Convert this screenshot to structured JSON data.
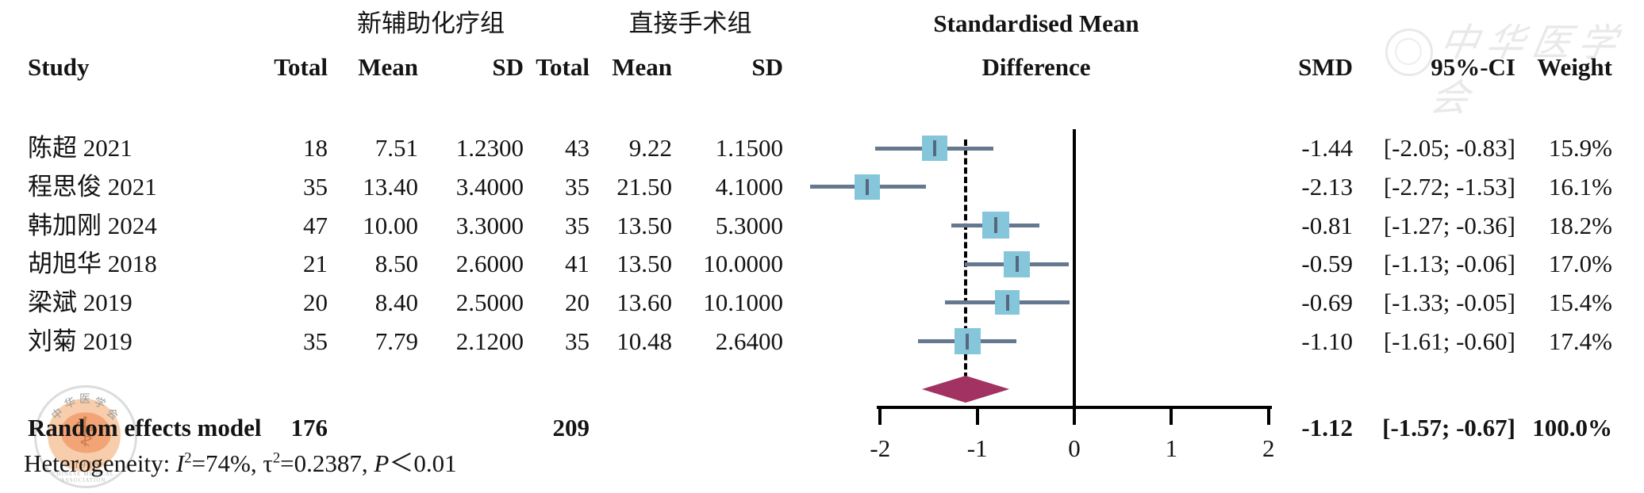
{
  "header": {
    "group1": "新辅助化疗组",
    "group2": "直接手术组",
    "effect_line1": "Standardised Mean",
    "effect_line2": "Difference",
    "col_study": "Study",
    "col_total": "Total",
    "col_mean": "Mean",
    "col_sd": "SD",
    "col_smd": "SMD",
    "col_ci": "95%-CI",
    "col_weight": "Weight"
  },
  "studies": [
    {
      "name": "陈超 2021",
      "total1": "18",
      "mean1": "7.51",
      "sd1": "1.2300",
      "total2": "43",
      "mean2": "9.22",
      "sd2": "1.1500",
      "smd": "-1.44",
      "ci": "[-2.05; -0.83]",
      "weight": "15.9%"
    },
    {
      "name": "程思俊 2021",
      "total1": "35",
      "mean1": "13.40",
      "sd1": "3.4000",
      "total2": "35",
      "mean2": "21.50",
      "sd2": "4.1000",
      "smd": "-2.13",
      "ci": "[-2.72; -1.53]",
      "weight": "16.1%"
    },
    {
      "name": "韩加刚 2024",
      "total1": "47",
      "mean1": "10.00",
      "sd1": "3.3000",
      "total2": "35",
      "mean2": "13.50",
      "sd2": "5.3000",
      "smd": "-0.81",
      "ci": "[-1.27; -0.36]",
      "weight": "18.2%"
    },
    {
      "name": "胡旭华 2018",
      "total1": "21",
      "mean1": "8.50",
      "sd1": "2.6000",
      "total2": "41",
      "mean2": "13.50",
      "sd2": "10.0000",
      "smd": "-0.59",
      "ci": "[-1.13; -0.06]",
      "weight": "17.0%"
    },
    {
      "name": "梁斌 2019",
      "total1": "20",
      "mean1": "8.40",
      "sd1": "2.5000",
      "total2": "20",
      "mean2": "13.60",
      "sd2": "10.1000",
      "smd": "-0.69",
      "ci": "[-1.33; -0.05]",
      "weight": "15.4%"
    },
    {
      "name": "刘菊 2019",
      "total1": "35",
      "mean1": "7.79",
      "sd1": "2.1200",
      "total2": "35",
      "mean2": "10.48",
      "sd2": "2.6400",
      "smd": "-1.10",
      "ci": "[-1.61; -0.60]",
      "weight": "17.4%"
    }
  ],
  "summary": {
    "label": "Random effects model",
    "total1": "176",
    "total2": "209",
    "smd": "-1.12",
    "ci": "[-1.57; -0.67]",
    "weight": "100.0%"
  },
  "heterogeneity": {
    "label": "Heterogeneity: ",
    "i2_sym": "I",
    "i2_sup": "2",
    "i2_rest": "=74%, ",
    "tau_sym": "τ",
    "tau_sup": "2",
    "tau_rest": "=0.2387, ",
    "p_sym": "P",
    "p_rest": "＜0.01"
  },
  "watermarks": {
    "top_right_text": "中华医学会",
    "seal_chars": [
      "中",
      "华",
      "医",
      "学",
      "会"
    ],
    "seal_symbol": "⚕",
    "seal_year": "1915",
    "seal_latin": "CHINESE MEDICAL ASSOCIATION"
  },
  "colors": {
    "square": "#85c6db",
    "ci_line": "#66788f",
    "marker": "#57687e",
    "diamond": "#a23261",
    "axis": "#000000"
  },
  "chart_data": {
    "type": "scatter",
    "plot_style": "forest",
    "title": "Standardised Mean Difference",
    "xlabel": "",
    "xlim": [
      -2,
      2
    ],
    "x_ticks": [
      -2,
      -1,
      0,
      1,
      2
    ],
    "zero_line": 0,
    "pooled_dashed_line": -1.12,
    "grid": false,
    "legend": "none",
    "series": [
      {
        "name": "陈超 2021",
        "smd": -1.44,
        "ci_low": -2.05,
        "ci_high": -0.83,
        "weight_pct": 15.9
      },
      {
        "name": "程思俊 2021",
        "smd": -2.13,
        "ci_low": -2.72,
        "ci_high": -1.53,
        "weight_pct": 16.1
      },
      {
        "name": "韩加刚 2024",
        "smd": -0.81,
        "ci_low": -1.27,
        "ci_high": -0.36,
        "weight_pct": 18.2
      },
      {
        "name": "胡旭华 2018",
        "smd": -0.59,
        "ci_low": -1.13,
        "ci_high": -0.06,
        "weight_pct": 17.0
      },
      {
        "name": "梁斌 2019",
        "smd": -0.69,
        "ci_low": -1.33,
        "ci_high": -0.05,
        "weight_pct": 15.4
      },
      {
        "name": "刘菊 2019",
        "smd": -1.1,
        "ci_low": -1.61,
        "ci_high": -0.6,
        "weight_pct": 17.4
      }
    ],
    "summary": {
      "name": "Random effects model",
      "smd": -1.12,
      "ci_low": -1.57,
      "ci_high": -0.67,
      "weight_pct": 100.0
    },
    "heterogeneity": {
      "I2": "74%",
      "tau2": 0.2387,
      "P": "＜0.01"
    }
  }
}
